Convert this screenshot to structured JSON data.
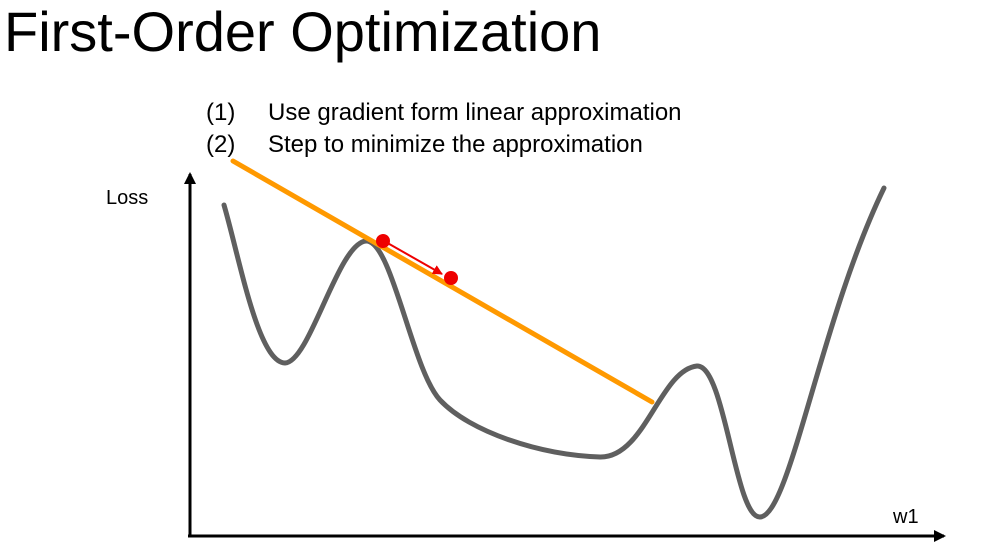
{
  "title": "First-Order Optimization",
  "steps": [
    {
      "number": "(1)",
      "text": "Use gradient form linear approximation"
    },
    {
      "number": "(2)",
      "text": "Step to minimize the approximation"
    }
  ],
  "axes": {
    "y_label": "Loss",
    "x_label": "w1"
  },
  "colors": {
    "loss_curve": "#5f5f5f",
    "tangent_line": "#ff9900",
    "point": "#ee0000",
    "axis": "#000000"
  }
}
